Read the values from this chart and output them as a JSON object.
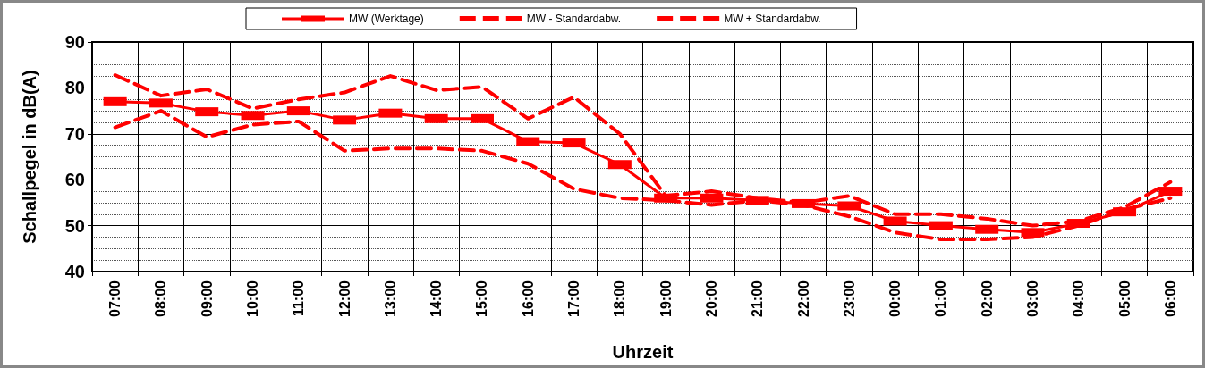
{
  "chart_data": {
    "type": "line",
    "xlabel": "Uhrzeit",
    "ylabel": "Schallpegel in dB(A)",
    "categories": [
      "07:00",
      "08:00",
      "09:00",
      "10:00",
      "11:00",
      "12:00",
      "13:00",
      "14:00",
      "15:00",
      "16:00",
      "17:00",
      "18:00",
      "19:00",
      "20:00",
      "21:00",
      "22:00",
      "23:00",
      "00:00",
      "01:00",
      "02:00",
      "03:00",
      "04:00",
      "05:00",
      "06:00"
    ],
    "series": [
      {
        "name": "MW (Werktage)",
        "color": "#ff0000",
        "line_style": "solid",
        "marker": "square",
        "values": [
          77,
          76.7,
          74.8,
          74,
          75,
          73,
          74.5,
          73.3,
          73.3,
          68.3,
          68,
          63.3,
          56,
          56,
          55.5,
          54.8,
          54.3,
          51,
          50,
          49.2,
          48.5,
          50.5,
          53,
          57.5
        ]
      },
      {
        "name": "MW - Standardabw.",
        "color": "#ff0000",
        "line_style": "dashed",
        "marker": "none",
        "values": [
          71.4,
          75,
          69.3,
          72,
          72.7,
          66.3,
          66.8,
          66.8,
          66.3,
          63.5,
          58,
          56,
          55.5,
          54.5,
          55.5,
          54.5,
          52,
          48.5,
          47,
          47,
          47.5,
          50,
          53.5,
          56
        ]
      },
      {
        "name": "MW + Standardabw.",
        "color": "#ff0000",
        "line_style": "dashed",
        "marker": "none",
        "values": [
          82.8,
          78.3,
          79.7,
          75.5,
          77.5,
          79,
          82.6,
          79.5,
          80.2,
          73.3,
          78,
          70,
          56.5,
          57.5,
          56,
          55,
          56.5,
          52.5,
          52.5,
          51.5,
          50,
          51,
          54,
          59.5
        ]
      }
    ],
    "ylim": [
      40,
      90
    ],
    "yticks": [
      40,
      50,
      60,
      70,
      80,
      90
    ],
    "grid": true,
    "legend": "top"
  }
}
